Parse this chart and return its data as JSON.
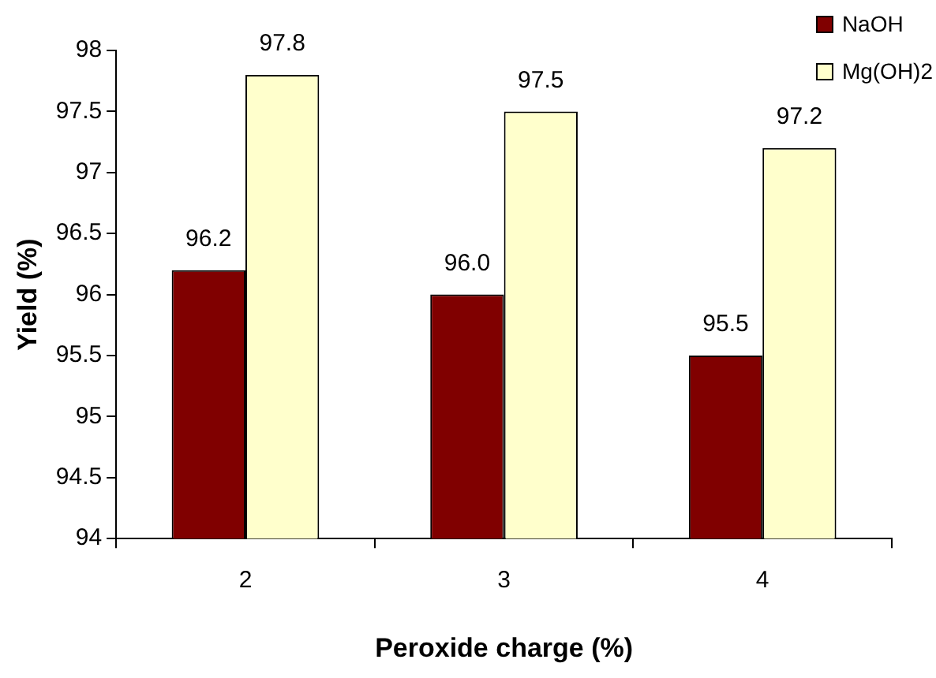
{
  "chart_data": {
    "type": "bar",
    "xlabel": "Peroxide charge (%)",
    "ylabel": "Yield (%)",
    "categories": [
      "2",
      "3",
      "4"
    ],
    "series": [
      {
        "name": "NaOH",
        "color": "#800000",
        "values": [
          96.2,
          96.0,
          95.5
        ],
        "value_labels": [
          "96.2",
          "96.0",
          "95.5"
        ]
      },
      {
        "name": "Mg(OH)2",
        "color": "#ffffcc",
        "values": [
          97.8,
          97.5,
          97.2
        ],
        "value_labels": [
          "97.8",
          "97.5",
          "97.2"
        ]
      }
    ],
    "ylim": [
      94,
      98
    ],
    "yticks": [
      94,
      94.5,
      95,
      95.5,
      96,
      96.5,
      97,
      97.5,
      98
    ],
    "grid": false,
    "legend": "top right"
  }
}
